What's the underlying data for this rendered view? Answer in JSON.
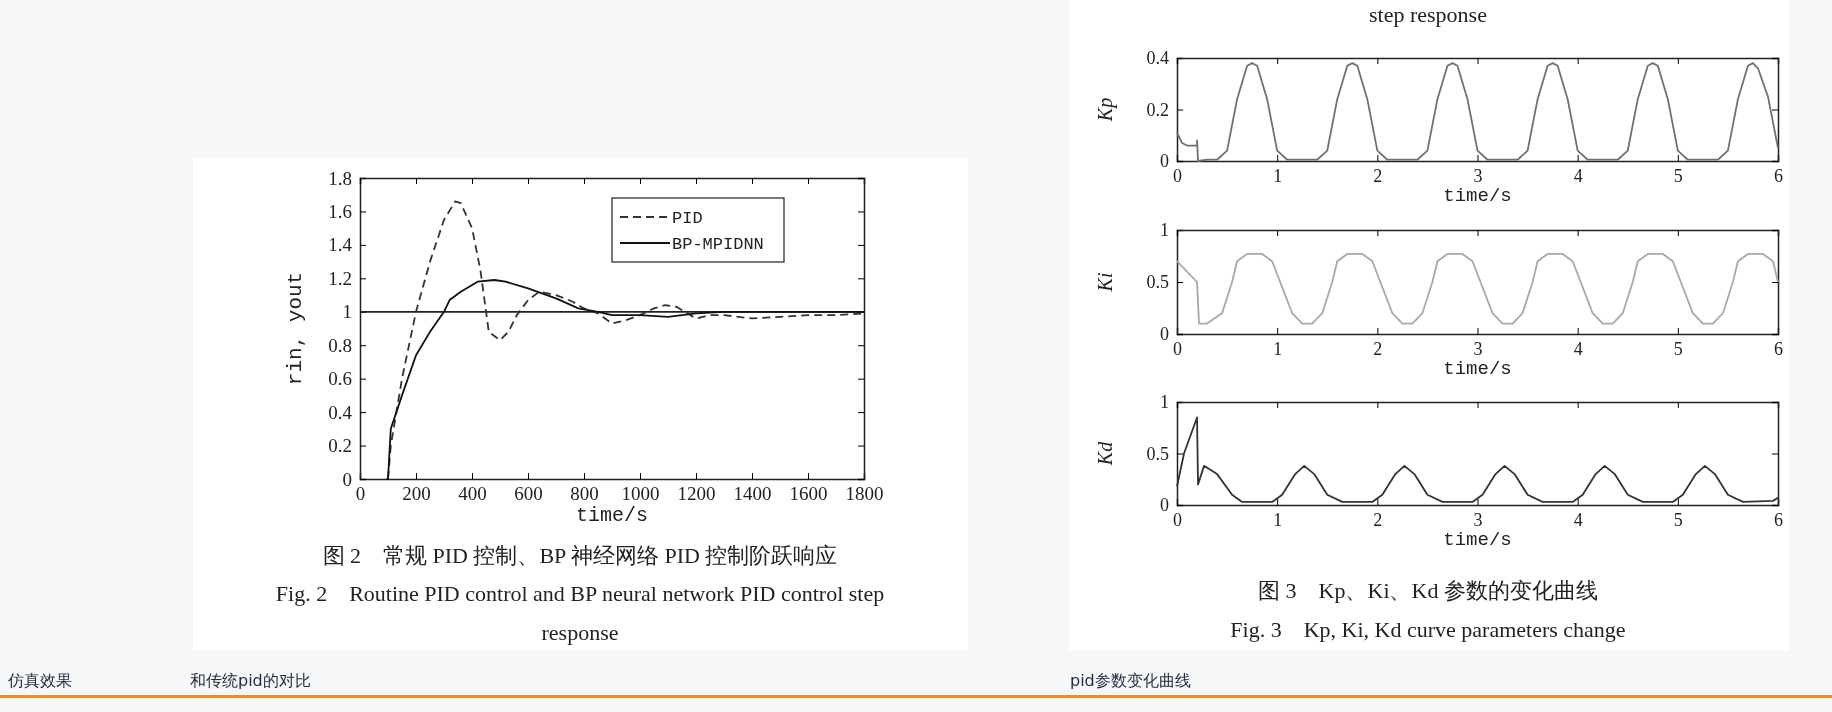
{
  "chart_data": [
    {
      "type": "line",
      "xlabel": "time/s",
      "ylabel": "rin, yout",
      "xlim": [
        0,
        1800
      ],
      "xticks": [
        0,
        200,
        400,
        600,
        800,
        1000,
        1200,
        1400,
        1600,
        1800
      ],
      "ylim": [
        0,
        1.8
      ],
      "yticks": [
        0,
        0.2,
        0.4,
        0.6,
        0.8,
        1,
        1.2,
        1.4,
        1.6,
        1.8
      ],
      "legend": "top right",
      "grid": false,
      "ref_lines": [
        {
          "axis": "y",
          "value": 1,
          "color": "#222222"
        }
      ],
      "annotations": [
        "图 2　常规 PID 控制、BP 神经网络 PID 控制阶跃响应",
        "Fig. 2　Routine PID control and BP neural network PID control step response",
        "仿真效果",
        "和传统pid的对比"
      ],
      "series": [
        {
          "name": "PID",
          "color": "#333333",
          "line_style": "dashed",
          "x": [
            100,
            110,
            150,
            200,
            250,
            300,
            340,
            360,
            400,
            430,
            460,
            500,
            530,
            560,
            600,
            640,
            700,
            760,
            800,
            850,
            900,
            950,
            1000,
            1050,
            1090,
            1130,
            1170,
            1200,
            1250,
            1300,
            1400,
            1500,
            1600,
            1700,
            1800
          ],
          "values": [
            0,
            0.2,
            0.6,
            1.0,
            1.3,
            1.55,
            1.66,
            1.65,
            1.5,
            1.25,
            0.88,
            0.83,
            0.88,
            0.98,
            1.07,
            1.12,
            1.1,
            1.06,
            1.02,
            0.99,
            0.93,
            0.95,
            0.98,
            1.02,
            1.04,
            1.03,
            0.99,
            0.96,
            0.98,
            0.98,
            0.96,
            0.97,
            0.98,
            0.98,
            0.99
          ]
        },
        {
          "name": "BP-MPIDNN",
          "color": "#111111",
          "line_style": "solid",
          "x": [
            95,
            100,
            110,
            150,
            200,
            250,
            300,
            320,
            360,
            420,
            480,
            520,
            600,
            700,
            780,
            850,
            900,
            1000,
            1100,
            1200,
            1300,
            1800
          ],
          "values": [
            0,
            0,
            0.3,
            0.5,
            0.74,
            0.88,
            1.0,
            1.07,
            1.12,
            1.18,
            1.19,
            1.18,
            1.14,
            1.08,
            1.02,
            1.0,
            0.98,
            0.98,
            0.97,
            0.99,
            1.0,
            1.0
          ]
        }
      ]
    },
    {
      "type": "line",
      "xlabel": "time/s",
      "ylabel": "Kp",
      "xlim": [
        0,
        6
      ],
      "xticks": [
        0,
        1,
        2,
        3,
        4,
        5,
        6
      ],
      "ylim": [
        0,
        0.4
      ],
      "yticks": [
        0,
        0.2,
        0.4
      ],
      "grid": false,
      "annotations": [
        "step response"
      ],
      "series": [
        {
          "color": "#707070",
          "x": [
            0,
            0.05,
            0.1,
            0.2,
            0.2,
            0.21,
            0.3,
            0.4,
            0.5,
            0.6,
            0.7,
            0.75,
            0.8,
            0.9,
            1.0,
            1.1,
            1.4,
            1.5,
            1.6,
            1.7,
            1.75,
            1.8,
            1.9,
            2.0,
            2.1,
            2.4,
            2.5,
            2.6,
            2.7,
            2.75,
            2.8,
            2.9,
            3.0,
            3.1,
            3.4,
            3.5,
            3.6,
            3.7,
            3.75,
            3.8,
            3.9,
            4.0,
            4.1,
            4.4,
            4.5,
            4.6,
            4.7,
            4.75,
            4.8,
            4.9,
            5.0,
            5.1,
            5.4,
            5.5,
            5.6,
            5.7,
            5.75,
            5.8,
            5.9,
            6.0
          ],
          "values": [
            0.11,
            0.07,
            0.06,
            0.06,
            0.08,
            0,
            0.005,
            0.005,
            0.04,
            0.24,
            0.37,
            0.38,
            0.37,
            0.24,
            0.04,
            0.005,
            0.005,
            0.04,
            0.24,
            0.37,
            0.38,
            0.37,
            0.24,
            0.04,
            0.005,
            0.005,
            0.04,
            0.24,
            0.37,
            0.38,
            0.37,
            0.24,
            0.04,
            0.005,
            0.005,
            0.04,
            0.24,
            0.37,
            0.38,
            0.37,
            0.24,
            0.04,
            0.005,
            0.005,
            0.04,
            0.24,
            0.37,
            0.38,
            0.37,
            0.24,
            0.04,
            0.005,
            0.005,
            0.04,
            0.24,
            0.37,
            0.38,
            0.36,
            0.25,
            0.05
          ]
        }
      ]
    },
    {
      "type": "line",
      "xlabel": "time/s",
      "ylabel": "Ki",
      "xlim": [
        0,
        6
      ],
      "xticks": [
        0,
        1,
        2,
        3,
        4,
        5,
        6
      ],
      "ylim": [
        0,
        1
      ],
      "yticks": [
        0,
        0.5,
        1
      ],
      "grid": false,
      "series": [
        {
          "color": "#a8a8a8",
          "x": [
            0,
            0.1,
            0.2,
            0.22,
            0.3,
            0.45,
            0.55,
            0.6,
            0.7,
            0.85,
            0.95,
            1.05,
            1.15,
            1.25,
            1.35,
            1.45,
            1.55,
            1.6,
            1.7,
            1.85,
            1.95,
            2.05,
            2.15,
            2.25,
            2.35,
            2.45,
            2.55,
            2.6,
            2.7,
            2.85,
            2.95,
            3.05,
            3.15,
            3.25,
            3.35,
            3.45,
            3.55,
            3.6,
            3.7,
            3.85,
            3.95,
            4.05,
            4.15,
            4.25,
            4.35,
            4.45,
            4.55,
            4.6,
            4.7,
            4.85,
            4.95,
            5.05,
            5.15,
            5.25,
            5.35,
            5.45,
            5.55,
            5.6,
            5.7,
            5.85,
            5.95,
            6.0
          ],
          "values": [
            0.7,
            0.6,
            0.5,
            0.1,
            0.1,
            0.2,
            0.5,
            0.7,
            0.77,
            0.77,
            0.7,
            0.45,
            0.2,
            0.1,
            0.1,
            0.2,
            0.5,
            0.7,
            0.77,
            0.77,
            0.7,
            0.45,
            0.2,
            0.1,
            0.1,
            0.2,
            0.5,
            0.7,
            0.77,
            0.77,
            0.7,
            0.45,
            0.2,
            0.1,
            0.1,
            0.2,
            0.5,
            0.7,
            0.77,
            0.77,
            0.7,
            0.45,
            0.2,
            0.1,
            0.1,
            0.2,
            0.5,
            0.7,
            0.77,
            0.77,
            0.7,
            0.45,
            0.2,
            0.1,
            0.1,
            0.2,
            0.5,
            0.7,
            0.77,
            0.77,
            0.7,
            0.5
          ]
        }
      ]
    },
    {
      "type": "line",
      "xlabel": "time/s",
      "ylabel": "Kd",
      "xlim": [
        0,
        6
      ],
      "xticks": [
        0,
        1,
        2,
        3,
        4,
        5,
        6
      ],
      "ylim": [
        0,
        1
      ],
      "yticks": [
        0,
        0.5,
        1
      ],
      "grid": false,
      "annotations": [
        "图 3　Kp、Ki、Kd 参数的变化曲线",
        "Fig. 3　Kp, Ki, Kd curve parameters change",
        "pid参数变化曲线"
      ],
      "series": [
        {
          "color": "#333333",
          "x": [
            0,
            0.07,
            0.2,
            0.21,
            0.27,
            0.4,
            0.55,
            0.65,
            0.95,
            1.05,
            1.18,
            1.27,
            1.37,
            1.5,
            1.65,
            1.95,
            2.05,
            2.18,
            2.27,
            2.37,
            2.5,
            2.65,
            2.95,
            3.05,
            3.18,
            3.27,
            3.37,
            3.5,
            3.65,
            3.95,
            4.05,
            4.18,
            4.27,
            4.37,
            4.5,
            4.65,
            4.95,
            5.05,
            5.18,
            5.27,
            5.37,
            5.5,
            5.65,
            5.95,
            6.0
          ],
          "values": [
            0.18,
            0.5,
            0.85,
            0.2,
            0.38,
            0.3,
            0.1,
            0.03,
            0.03,
            0.1,
            0.3,
            0.38,
            0.3,
            0.1,
            0.03,
            0.03,
            0.1,
            0.3,
            0.38,
            0.3,
            0.1,
            0.03,
            0.03,
            0.1,
            0.3,
            0.38,
            0.3,
            0.1,
            0.03,
            0.03,
            0.1,
            0.3,
            0.38,
            0.3,
            0.1,
            0.03,
            0.03,
            0.1,
            0.3,
            0.38,
            0.3,
            0.1,
            0.03,
            0.04,
            0.07
          ]
        }
      ]
    }
  ]
}
